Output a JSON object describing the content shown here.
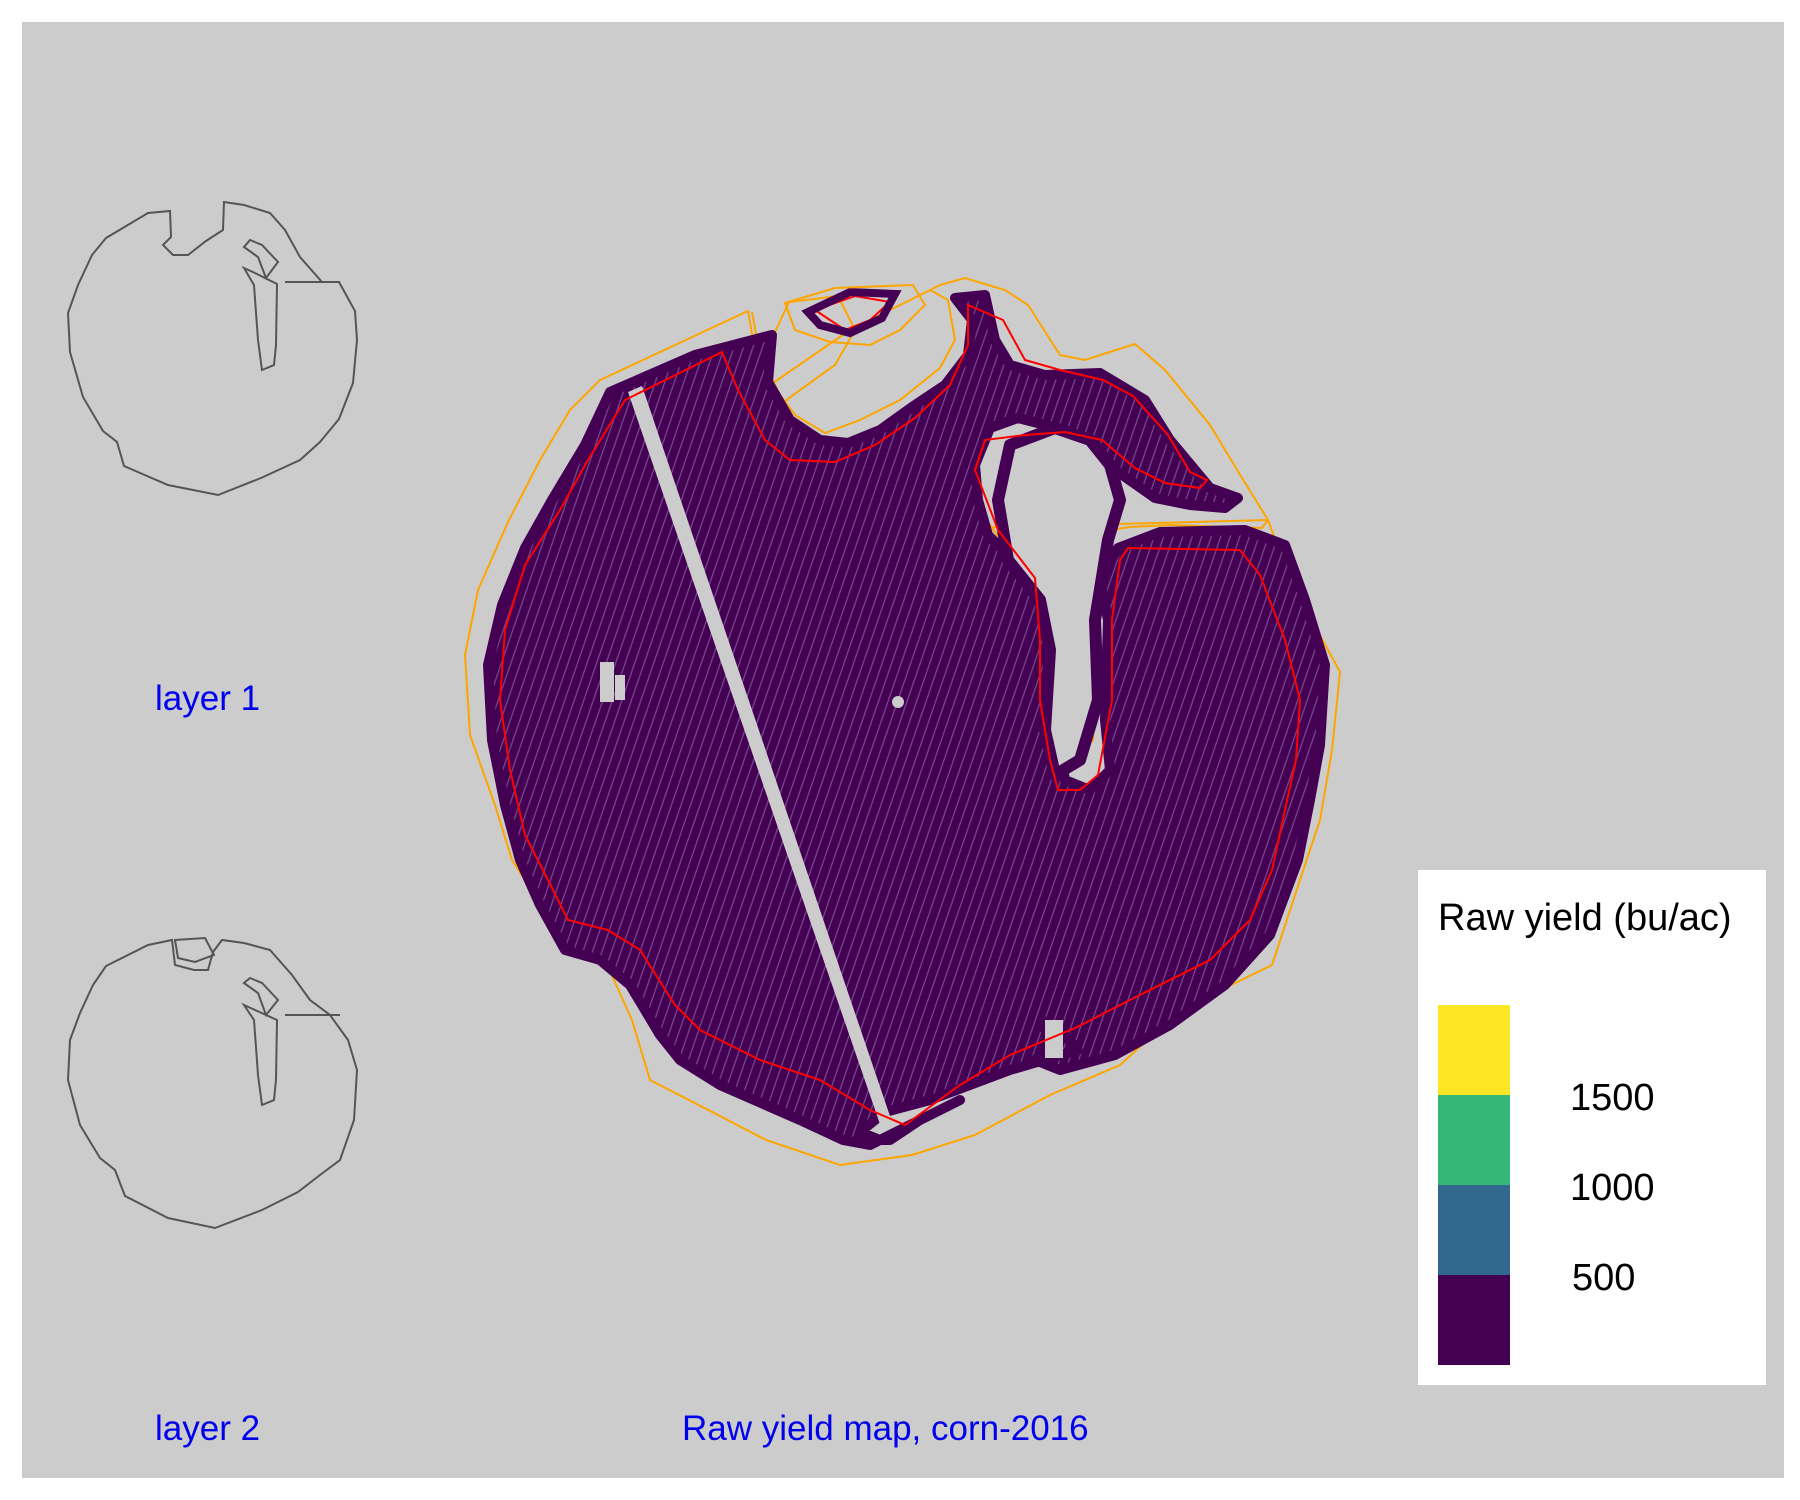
{
  "panels": {
    "layer1_label": "layer 1",
    "layer2_label": "layer 2",
    "main_label": "Raw yield map, corn-2016"
  },
  "legend": {
    "title": "Raw yield (bu/ac)",
    "ticks": [
      "1500",
      "1000",
      "500"
    ],
    "colors": [
      "#fde725",
      "#35b779",
      "#31688e",
      "#440154"
    ]
  },
  "colors": {
    "background": "#cccccc",
    "yield_fill": "#440154",
    "field_boundary": "#ff0000",
    "buffer_boundary": "#ffa500",
    "layer_outline": "#555555",
    "label_color": "#0000ee"
  },
  "chart_data": {
    "type": "heatmap",
    "title": "Raw yield map, corn-2016",
    "legend_title": "Raw yield (bu/ac)",
    "color_scale": "viridis",
    "scale_breaks": [
      500,
      1000,
      1500
    ],
    "dominant_bin": "<500"
  }
}
